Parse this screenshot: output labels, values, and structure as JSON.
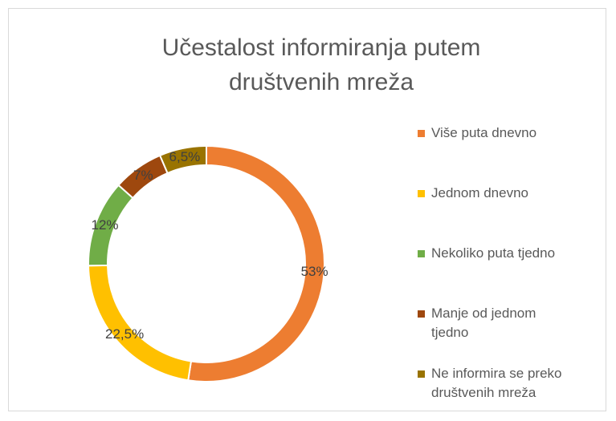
{
  "chart_data": {
    "type": "donut",
    "title": "Učestalost informiranja putem društvenih mreža",
    "categories": [
      "Više puta dnevno",
      "Jednom dnevno",
      "Nekoliko puta tjedno",
      "Manje od jednom tjedno",
      "Ne informira se preko društvenih mreža"
    ],
    "values": [
      53,
      22.5,
      12,
      7,
      6.5
    ],
    "value_labels": [
      "53%",
      "22,5%",
      "12%",
      "7%",
      "6,5%"
    ],
    "colors": [
      "#ed7d31",
      "#ffc000",
      "#70ad47",
      "#9e480e",
      "#997300"
    ],
    "legend": "right"
  }
}
